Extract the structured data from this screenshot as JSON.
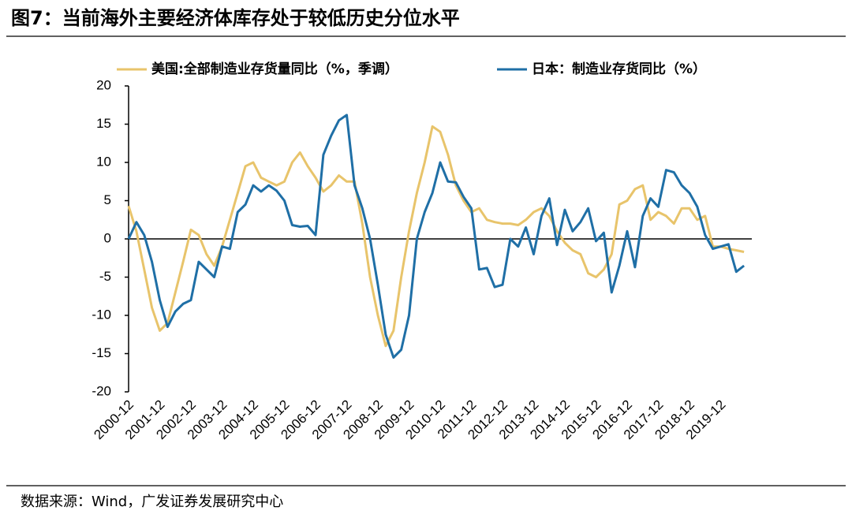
{
  "chart_data": {
    "type": "line",
    "title": "图7：当前海外主要经济体库存处于较低历史分位水平",
    "source": "数据来源：Wind，广发证券发展研究中心",
    "categories": [
      "2000-12",
      null,
      null,
      null,
      "2001-12",
      null,
      null,
      null,
      "2002-12",
      null,
      null,
      null,
      "2003-12",
      null,
      null,
      null,
      "2004-12",
      null,
      null,
      null,
      "2005-12",
      null,
      null,
      null,
      "2006-12",
      null,
      null,
      null,
      "2007-12",
      null,
      null,
      null,
      "2008-12",
      null,
      null,
      null,
      "2009-12",
      null,
      null,
      null,
      "2010-12",
      null,
      null,
      null,
      "2011-12",
      null,
      null,
      null,
      "2012-12",
      null,
      null,
      null,
      "2013-12",
      null,
      null,
      null,
      "2014-12",
      null,
      null,
      null,
      "2015-12",
      null,
      null,
      null,
      "2016-12",
      null,
      null,
      null,
      "2017-12",
      null,
      null,
      null,
      "2018-12",
      null,
      null,
      null,
      "2019-12",
      null,
      null,
      null
    ],
    "series": [
      {
        "name": "美国:全部制造业存货量同比（%，季调）",
        "color": "#e8c46b",
        "values": [
          4.3,
          1,
          -4,
          -9,
          -12,
          -11,
          -7,
          -3,
          1.2,
          0.5,
          -2,
          -3.5,
          -1,
          2.5,
          6,
          9.5,
          10,
          8,
          7.5,
          7,
          7.5,
          10,
          11.3,
          9.5,
          8,
          6.2,
          7,
          8.3,
          7.5,
          7.5,
          2,
          -5,
          -10,
          -14,
          -12,
          -5,
          1,
          6,
          10,
          14.7,
          14,
          11,
          7,
          5,
          3.5,
          4,
          2.5,
          2.2,
          2,
          2,
          1.8,
          2.5,
          3.5,
          4,
          3,
          1,
          -0.5,
          -1.5,
          -2,
          -4.5,
          -5,
          -4,
          -2,
          4.5,
          5,
          6.5,
          7,
          2.5,
          3.5,
          3,
          2,
          4,
          4,
          2.5,
          3,
          -1,
          -1,
          -1.3,
          -1.5,
          -1.7
        ]
      },
      {
        "name": "日本：制造业存货同比（%）",
        "color": "#1f6fa6",
        "values": [
          0,
          2.2,
          0.5,
          -3,
          -8,
          -11.5,
          -9.5,
          -8.5,
          -8,
          -3,
          -4,
          -5,
          -1,
          -1.3,
          3.5,
          4.5,
          7,
          6.2,
          7,
          6.3,
          5,
          1.8,
          1.6,
          1.7,
          0.5,
          11,
          13.5,
          15.5,
          16.2,
          7,
          4,
          0,
          -6,
          -12.5,
          -15.5,
          -14.5,
          -10,
          0,
          3.5,
          6,
          10,
          7.5,
          7.4,
          5.5,
          4,
          -4,
          -3.8,
          -6.3,
          -6,
          0,
          -1,
          1.5,
          -2,
          3,
          5.3,
          -0.8,
          3.8,
          1,
          2.2,
          4,
          -0.3,
          0.8,
          -7,
          -3.5,
          1,
          -3.7,
          3,
          5.3,
          4.2,
          9,
          8.7,
          7,
          6,
          4.2,
          0.5,
          -1.3,
          -1,
          -0.7,
          -4.3,
          -3.5
        ]
      }
    ],
    "ylim": [
      -20,
      20
    ],
    "yticks": [
      -20,
      -15,
      -10,
      -5,
      0,
      5,
      10,
      15,
      20
    ],
    "grid": false
  }
}
